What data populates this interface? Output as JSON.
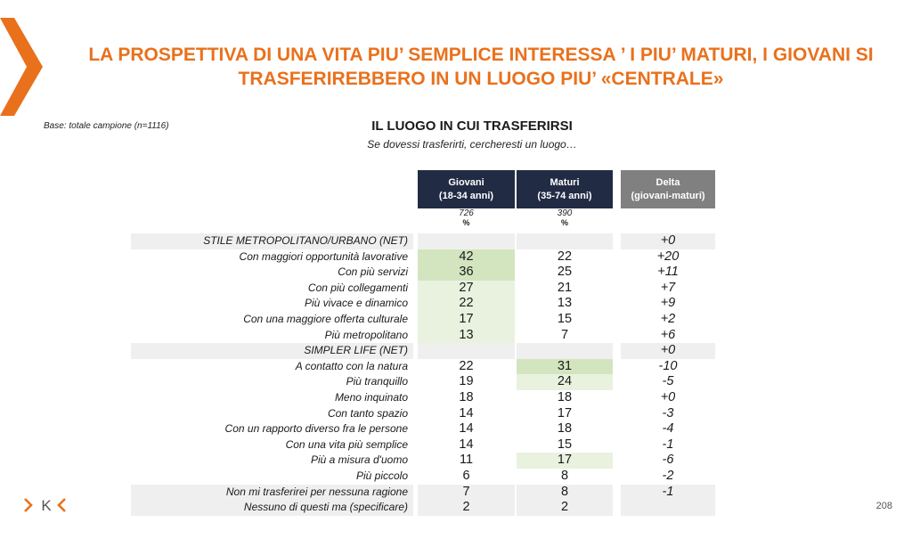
{
  "slide": {
    "title_line1": "LA PROSPETTIVA DI UNA VITA PIU’ SEMPLICE INTERESSA ’ I PIU’ MATURI, I GIOVANI SI",
    "title_line2": "TRASFERIREBBERO IN UN LUOGO PIU’ «CENTRALE»",
    "base_note": "Base: totale campione (n=1116)",
    "page_number": "208",
    "logo_text": "K",
    "accent_color": "#e9711c"
  },
  "chart_data": {
    "type": "table",
    "title": "IL LUOGO IN CUI TRASFERIRSI",
    "subtitle": "Se dovessi trasferirti, cercheresti un luogo…",
    "columns": [
      {
        "line1": "Giovani",
        "line2": "(18-34 anni)",
        "base": "726",
        "unit": "%"
      },
      {
        "line1": "Maturi",
        "line2": "(35-74 anni)",
        "base": "390",
        "unit": "%"
      },
      {
        "line1": "Delta",
        "line2": "(giovani-maturi)"
      }
    ],
    "rows": [
      {
        "label": "STILE METROPOLITANO/URBANO (NET)",
        "g": "",
        "m": "",
        "d": "+0",
        "net": true
      },
      {
        "label": "Con maggiori opportunità lavorative",
        "g": "42",
        "m": "22",
        "d": "+20",
        "hl": "g-strong"
      },
      {
        "label": "Con più servizi",
        "g": "36",
        "m": "25",
        "d": "+11",
        "hl": "g-strong"
      },
      {
        "label": "Con più collegamenti",
        "g": "27",
        "m": "21",
        "d": "+7",
        "hl": "g-light"
      },
      {
        "label": "Più vivace e dinamico",
        "g": "22",
        "m": "13",
        "d": "+9",
        "hl": "g-light"
      },
      {
        "label": "Con una maggiore offerta culturale",
        "g": "17",
        "m": "15",
        "d": "+2",
        "hl": "g-light"
      },
      {
        "label": "Più metropolitano",
        "g": "13",
        "m": "7",
        "d": "+6",
        "hl": "g-light"
      },
      {
        "label": "SIMPLER LIFE (NET)",
        "g": "",
        "m": "",
        "d": "+0",
        "net": true
      },
      {
        "label": "A contatto con la natura",
        "g": "22",
        "m": "31",
        "d": "-10",
        "hl": "m-strong"
      },
      {
        "label": "Più tranquillo",
        "g": "19",
        "m": "24",
        "d": "-5",
        "hl": "m-light"
      },
      {
        "label": "Meno inquinato",
        "g": "18",
        "m": "18",
        "d": "+0"
      },
      {
        "label": "Con tanto spazio",
        "g": "14",
        "m": "17",
        "d": "-3"
      },
      {
        "label": "Con un rapporto diverso fra le persone",
        "g": "14",
        "m": "18",
        "d": "-4"
      },
      {
        "label": "Con una vita più semplice",
        "g": "14",
        "m": "15",
        "d": "-1"
      },
      {
        "label": "Più a misura d'uomo",
        "g": "11",
        "m": "17",
        "d": "-6",
        "hl": "m-light"
      },
      {
        "label": "Più piccolo",
        "g": "6",
        "m": "8",
        "d": "-2"
      },
      {
        "label": "Non mi trasferirei per nessuna ragione",
        "g": "7",
        "m": "8",
        "d": "-1",
        "net": true
      },
      {
        "label": "Nessuno di questi ma (specificare)",
        "g": "2",
        "m": "2",
        "d": "",
        "net": true
      }
    ]
  }
}
